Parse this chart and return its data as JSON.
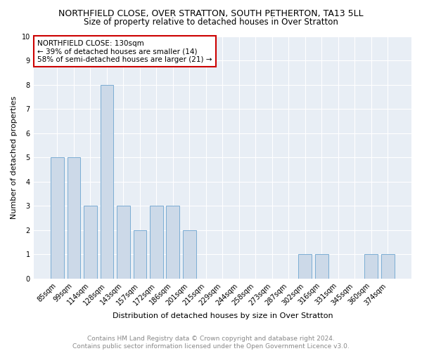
{
  "title": "NORTHFIELD CLOSE, OVER STRATTON, SOUTH PETHERTON, TA13 5LL",
  "subtitle": "Size of property relative to detached houses in Over Stratton",
  "xlabel": "Distribution of detached houses by size in Over Stratton",
  "ylabel": "Number of detached properties",
  "categories": [
    "85sqm",
    "99sqm",
    "114sqm",
    "128sqm",
    "143sqm",
    "157sqm",
    "172sqm",
    "186sqm",
    "201sqm",
    "215sqm",
    "229sqm",
    "244sqm",
    "258sqm",
    "273sqm",
    "287sqm",
    "302sqm",
    "316sqm",
    "331sqm",
    "345sqm",
    "360sqm",
    "374sqm"
  ],
  "values": [
    5,
    5,
    3,
    8,
    3,
    2,
    3,
    3,
    2,
    0,
    0,
    0,
    0,
    0,
    0,
    1,
    1,
    0,
    0,
    1,
    1
  ],
  "bar_color": "#ccd9e8",
  "bar_edge_color": "#7badd4",
  "annotation_text": "NORTHFIELD CLOSE: 130sqm\n← 39% of detached houses are smaller (14)\n58% of semi-detached houses are larger (21) →",
  "annotation_box_facecolor": "#ffffff",
  "annotation_box_edgecolor": "#cc0000",
  "ylim": [
    0,
    10
  ],
  "yticks": [
    0,
    1,
    2,
    3,
    4,
    5,
    6,
    7,
    8,
    9,
    10
  ],
  "footer_line1": "Contains HM Land Registry data © Crown copyright and database right 2024.",
  "footer_line2": "Contains public sector information licensed under the Open Government Licence v3.0.",
  "fig_bg_color": "#ffffff",
  "plot_bg_color": "#e8eef5",
  "grid_color": "#ffffff",
  "title_fontsize": 9,
  "subtitle_fontsize": 8.5,
  "ylabel_fontsize": 8,
  "xlabel_fontsize": 8,
  "tick_fontsize": 7,
  "annotation_fontsize": 7.5,
  "footer_fontsize": 6.5,
  "footer_color": "#888888"
}
